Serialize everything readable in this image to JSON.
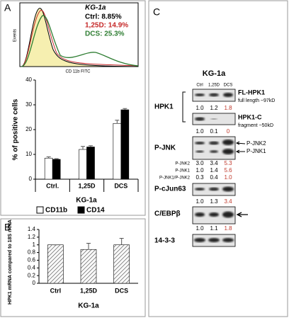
{
  "panels": {
    "a": "A",
    "b": "B",
    "c": "C"
  },
  "histogram": {
    "title": "KG-1a",
    "entries": [
      {
        "text": "Ctrl: 8.85%",
        "color": "#000000"
      },
      {
        "text": "1,25D: 14.9%",
        "color": "#c62828"
      },
      {
        "text": "DCS: 25.3%",
        "color": "#2e7d32"
      }
    ],
    "ylabel": "Events",
    "xlabel": "CD 11b FITC"
  },
  "chart_data": [
    {
      "type": "bar",
      "ylabel": "% of positive cells",
      "xlabel": "KG-1a",
      "categories": [
        "Ctrl.",
        "1,25D",
        "DCS"
      ],
      "series": [
        {
          "name": "CD11b",
          "color": "#ffffff",
          "values": [
            8.5,
            12,
            22.5
          ],
          "errors": [
            0.5,
            1.2,
            1.3
          ]
        },
        {
          "name": "CD14",
          "color": "#000000",
          "values": [
            8,
            13,
            28
          ],
          "errors": [
            0.3,
            0.5,
            0.5
          ]
        }
      ],
      "ylim": [
        0,
        40
      ],
      "yticks": [
        0,
        10,
        20,
        30,
        40
      ]
    },
    {
      "type": "bar",
      "ylabel": "HPK1 mRNA compared to 18S rRNA",
      "xlabel": "KG-1a",
      "categories": [
        "Ctrl",
        "1,25D",
        "DCS"
      ],
      "series": [
        {
          "color": "#888888",
          "values": [
            1.0,
            0.88,
            1.0
          ],
          "errors": [
            0,
            0.16,
            0.17
          ]
        }
      ],
      "ylim": [
        0,
        1.4
      ],
      "yticks": [
        0,
        0.2,
        0.4,
        0.6,
        0.8,
        1,
        1.2,
        1.4
      ]
    }
  ],
  "blots": {
    "title": "KG-1a",
    "columns": [
      "Ctrl",
      "1,25D",
      "DCS"
    ],
    "group": "HPK1",
    "fl": {
      "label": "FL-HPK1",
      "note": "full length ~97kD",
      "values": [
        "1.0",
        "1.2",
        "1.8"
      ]
    },
    "c": {
      "label": "HPK1-C",
      "note": "fragment ~50kD",
      "values": [
        "1.0",
        "0.1",
        "0"
      ]
    },
    "pjnk": {
      "label": "P-JNK",
      "arrows": [
        "P-JNK2",
        "P-JNK1"
      ],
      "rows": [
        {
          "label": "P-JNK2",
          "values": [
            "3.0",
            "3.4",
            "5.3"
          ]
        },
        {
          "label": "P-JNK1",
          "values": [
            "1.0",
            "1.4",
            "5.6"
          ]
        },
        {
          "label": "P-JNK1/P-JNK2",
          "values": [
            "0.3",
            "0.4",
            "1.0"
          ]
        }
      ]
    },
    "pcjun": {
      "label": "P-cJun63",
      "values": [
        "1.0",
        "1.3",
        "3.4"
      ]
    },
    "cebp": {
      "label": "C/EBPβ",
      "values": [
        "1.0",
        "1.1",
        "1.8"
      ]
    },
    "loading": {
      "label": "14-3-3"
    }
  }
}
